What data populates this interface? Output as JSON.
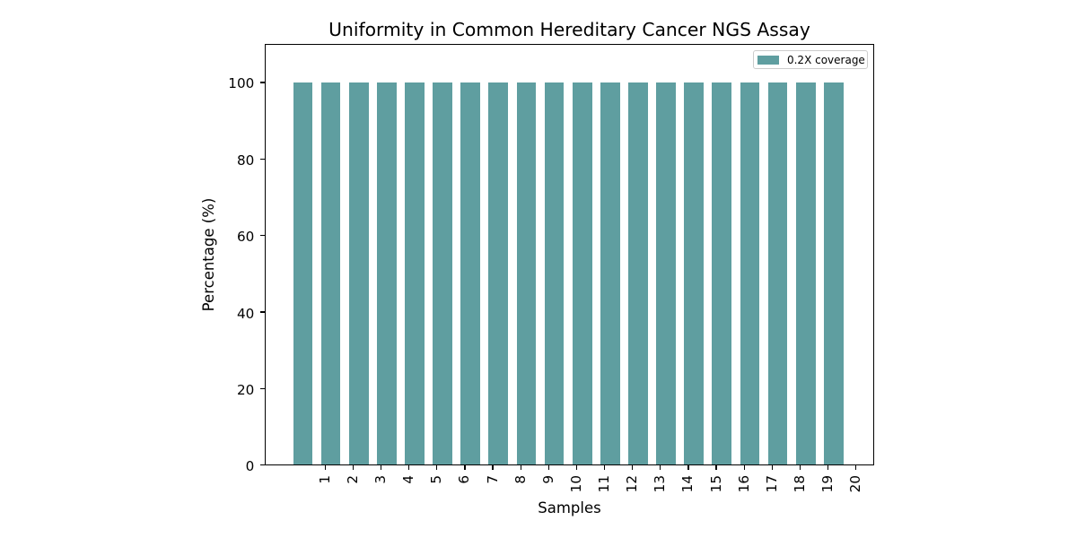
{
  "chart_data": {
    "type": "bar",
    "title": "Uniformity in Common Hereditary Cancer NGS Assay",
    "xlabel": "Samples",
    "ylabel": "Percentage (%)",
    "categories": [
      "1",
      "2",
      "3",
      "4",
      "5",
      "6",
      "7",
      "8",
      "9",
      "10",
      "11",
      "12",
      "13",
      "14",
      "15",
      "16",
      "17",
      "18",
      "19",
      "20"
    ],
    "values": [
      100,
      100,
      100,
      100,
      100,
      100,
      100,
      100,
      100,
      100,
      100,
      100,
      100,
      100,
      100,
      100,
      100,
      100,
      100,
      100
    ],
    "series": [
      {
        "name": "0.2X coverage",
        "color": "#5f9ea0",
        "values": [
          100,
          100,
          100,
          100,
          100,
          100,
          100,
          100,
          100,
          100,
          100,
          100,
          100,
          100,
          100,
          100,
          100,
          100,
          100,
          100
        ]
      }
    ],
    "legend": {
      "entries": [
        {
          "label": "0.2X coverage",
          "color": "#5f9ea0"
        }
      ],
      "position": "upper right"
    },
    "xlim": [
      -1.13,
      20.62
    ],
    "ylim": [
      0,
      110
    ],
    "yticks": [
      0,
      20,
      40,
      60,
      80,
      100
    ],
    "xtick_rotation": 90,
    "bar_width": 0.7,
    "bar_center_offset": -0.8,
    "grid": false,
    "background_color": "#ffffff",
    "spine_color": "#000000",
    "text_color": "#000000"
  }
}
